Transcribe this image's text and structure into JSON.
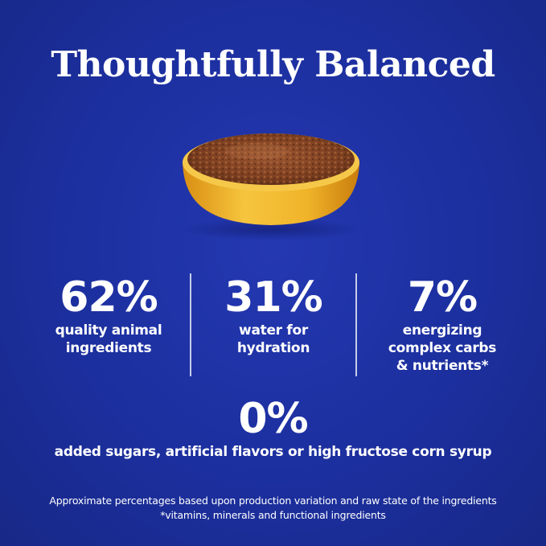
{
  "title": "Thoughtfully Balanced",
  "image": {
    "icon": "food-bowl-icon",
    "colors": {
      "bowl": "#f2b830",
      "food": "#8a4a28"
    }
  },
  "stats": [
    {
      "value": "62%",
      "line1": "quality animal",
      "line2": "ingredients",
      "line3": ""
    },
    {
      "value": "31%",
      "line1": "water for",
      "line2": "hydration",
      "line3": ""
    },
    {
      "value": "7%",
      "line1": "energizing",
      "line2": "complex carbs",
      "line3": "& nutrients*"
    }
  ],
  "zero_stat": {
    "value": "0%",
    "description": "added sugars, artificial flavors or high fructose corn syrup"
  },
  "footnote": {
    "line1": "Approximate percentages based upon production variation and raw state of the ingredients",
    "line2": "*vitamins, minerals and functional ingredients"
  },
  "colors": {
    "background": "#1c2f9e",
    "text": "#ffffff",
    "divider": "#c7cde8"
  }
}
